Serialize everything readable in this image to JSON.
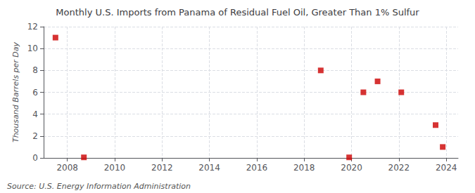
{
  "chart_data": {
    "type": "scatter",
    "title": "Monthly U.S. Imports from Panama of Residual Fuel Oil, Greater Than 1% Sulfur",
    "ylabel": "Thousand Barrels per Day",
    "annotations": [
      "Source: U.S. Energy Information Administration"
    ],
    "x": [
      2007.5,
      2008.7,
      2018.7,
      2019.9,
      2020.5,
      2021.1,
      2022.1,
      2023.55,
      2023.85
    ],
    "values": [
      11,
      0.05,
      8,
      0.05,
      6,
      7,
      6,
      3,
      1
    ],
    "color": "#cc0000",
    "marker": "square",
    "xlim": [
      2007,
      2024.5
    ],
    "ylim": [
      0,
      12
    ],
    "xticks": [
      2008,
      2010,
      2012,
      2014,
      2016,
      2018,
      2020,
      2022,
      2024
    ],
    "yticks": [
      0,
      2,
      4,
      6,
      8,
      10,
      12
    ],
    "grid": true
  }
}
